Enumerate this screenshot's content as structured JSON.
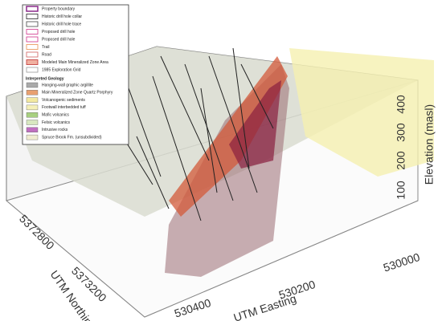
{
  "legend": {
    "items": [
      "Property boundary",
      "Historic drill hole collar",
      "Historic drill hole trace",
      "Proposed drill hole",
      "Proposed drill hole",
      "Trail",
      "Road",
      "Modeled Main Mineralized Zone Area",
      "1985 Exploration Grid"
    ],
    "geology_title": "Interpreted Geology",
    "geology": [
      "Hanging-wall graphic argillite",
      "Main Mineralized Zone Quartz Porphyry",
      "Volcanogenic sediments",
      "Footwall interbedded tuff",
      "Mafic volcanics",
      "Felsic volcanics",
      "Intrusive rocks",
      "Spruce Brook Fm. (unsubdivided)"
    ]
  },
  "axes": {
    "elevation": {
      "label": "Elevation (masl)",
      "ticks": [
        "100",
        "200",
        "300",
        "400"
      ]
    },
    "northing": {
      "label": "UTM Northing",
      "ticks": [
        "5372800",
        "5373200"
      ]
    },
    "easting": {
      "label": "UTM Easting",
      "ticks": [
        "530000",
        "530200",
        "530400"
      ]
    }
  }
}
